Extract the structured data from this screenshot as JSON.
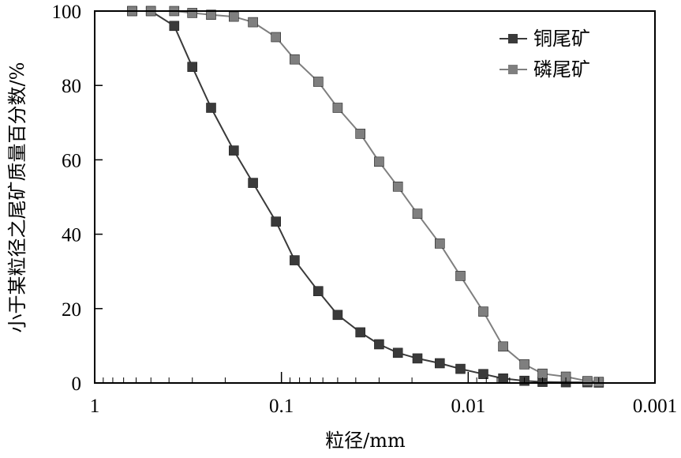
{
  "chart_data": {
    "type": "scatter",
    "title": "",
    "xlabel": "粒径/mm",
    "ylabel": "小于某粒径之尾矿质量百分数/%",
    "x_scale": "log",
    "x_reversed": true,
    "xlim": [
      1,
      0.001
    ],
    "ylim": [
      0,
      100
    ],
    "x_ticks": [
      1,
      0.1,
      0.01,
      0.001
    ],
    "x_tick_labels": [
      "1",
      "0.1",
      "0.01",
      "0.001"
    ],
    "y_ticks": [
      0,
      20,
      40,
      60,
      80,
      100
    ],
    "y_tick_labels": [
      "0",
      "20",
      "40",
      "60",
      "80",
      "100"
    ],
    "grid": false,
    "legend_position": "top-right",
    "series": [
      {
        "name": "铜尾矿",
        "color": "#3a3a3a",
        "marker": "square",
        "x": [
          0.63,
          0.5,
          0.375,
          0.3,
          0.238,
          0.18,
          0.142,
          0.107,
          0.085,
          0.0635,
          0.05,
          0.0378,
          0.03,
          0.0238,
          0.0187,
          0.0142,
          0.011,
          0.0083,
          0.0065,
          0.005,
          0.004,
          0.003,
          0.0023,
          0.002
        ],
        "y": [
          100,
          100,
          96,
          85,
          74,
          62.5,
          53.8,
          43.4,
          33,
          24.7,
          18.3,
          13.6,
          10.4,
          8.1,
          6.6,
          5.3,
          3.8,
          2.4,
          1.2,
          0.6,
          0.3,
          0.2,
          0.2,
          0.1
        ]
      },
      {
        "name": "磷尾矿",
        "color": "#7f7f7f",
        "marker": "square",
        "x": [
          0.63,
          0.5,
          0.375,
          0.3,
          0.238,
          0.18,
          0.142,
          0.107,
          0.085,
          0.0635,
          0.05,
          0.0378,
          0.03,
          0.0238,
          0.0187,
          0.0142,
          0.011,
          0.0083,
          0.0065,
          0.005,
          0.004,
          0.003,
          0.0023,
          0.002
        ],
        "y": [
          100,
          100,
          100,
          99.5,
          99,
          98.5,
          97,
          93,
          87,
          81,
          74,
          67,
          59.5,
          52.8,
          45.5,
          37.5,
          28.8,
          19.2,
          9.8,
          5,
          2.5,
          1.7,
          0.5,
          0.3
        ]
      }
    ]
  }
}
